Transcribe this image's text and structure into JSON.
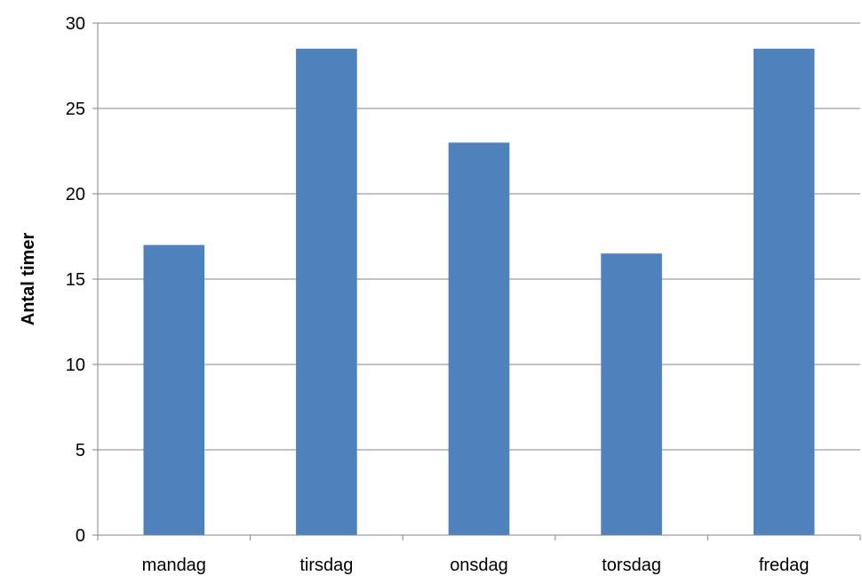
{
  "chart_data": {
    "type": "bar",
    "title": "",
    "xlabel": "",
    "ylabel": "Antal timer",
    "categories": [
      "mandag",
      "tirsdag",
      "onsdag",
      "torsdag",
      "fredag"
    ],
    "values": [
      17,
      28.5,
      23,
      16.5,
      28.5
    ],
    "ylim": [
      0,
      30
    ],
    "yticks": [
      0,
      5,
      10,
      15,
      20,
      25,
      30
    ],
    "grid": true,
    "legend": "none",
    "bar_color": "#4f81bd",
    "grid_color": "#868686",
    "axis_color": "#868686"
  }
}
